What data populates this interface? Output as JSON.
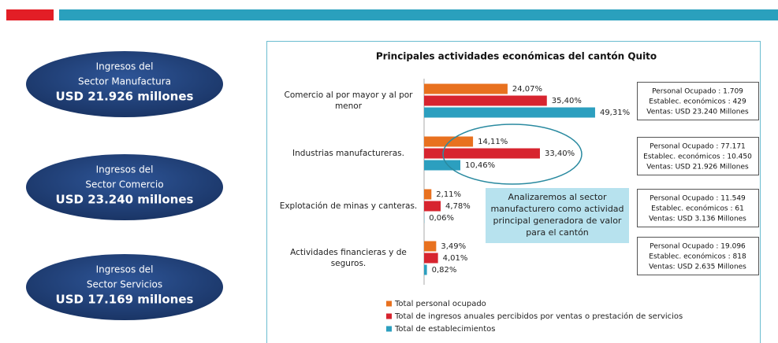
{
  "chart_data": {
    "type": "bar",
    "orientation": "horizontal",
    "title": "Principales actividades económicas del cantón Quito",
    "categories": [
      "Comercio al por mayor y al por menor",
      "Industrias manufactureras.",
      "Explotación de minas y canteras.",
      "Actividades financieras y de seguros."
    ],
    "series": [
      {
        "name": "Total personal ocupado",
        "color": "#e8711f",
        "values": [
          24.07,
          14.11,
          2.11,
          3.49
        ],
        "value_labels": [
          "24,07%",
          "14,11%",
          "2,11%",
          "3,49%"
        ]
      },
      {
        "name": "Total de ingresos anuales percibidos por ventas o prestación de servicios",
        "color": "#d7242f",
        "values": [
          35.4,
          33.4,
          4.78,
          4.01
        ],
        "value_labels": [
          "35,40%",
          "33,40%",
          "4,78%",
          "4,01%"
        ]
      },
      {
        "name": "Total de establecimientos",
        "color": "#2c9fbf",
        "values": [
          49.31,
          10.46,
          0.06,
          0.82
        ],
        "value_labels": [
          "49,31%",
          "10,46%",
          "0,06%",
          "0,82%"
        ]
      }
    ],
    "xlim": [
      0,
      50
    ],
    "info_boxes": [
      [
        "Personal Ocupado : 1.709",
        "Establec. económicos : 429",
        "Ventas: USD 23.240 Millones"
      ],
      [
        "Personal Ocupado : 77.171",
        "Establec. económicos : 10.450",
        "Ventas: USD 21.926 Millones"
      ],
      [
        "Personal Ocupado : 11.549",
        "Establec. económicos : 61",
        "Ventas: USD 3.136 Millones"
      ],
      [
        "Personal Ocupado : 19.096",
        "Establec. económicos : 818",
        "Ventas: USD 2.635 Millones"
      ]
    ],
    "annotation": [
      "Analizaremos al sector",
      "manufacturero como  actividad",
      "principal generadora de valor",
      "para el cantón"
    ]
  },
  "sectors": [
    [
      "Ingresos del",
      "Sector Manufactura",
      "USD 21.926 millones"
    ],
    [
      "Ingresos del",
      "Sector Comercio",
      "USD 23.240 millones"
    ],
    [
      "Ingresos del",
      "Sector Servicios",
      "USD  17.169 millones"
    ]
  ]
}
